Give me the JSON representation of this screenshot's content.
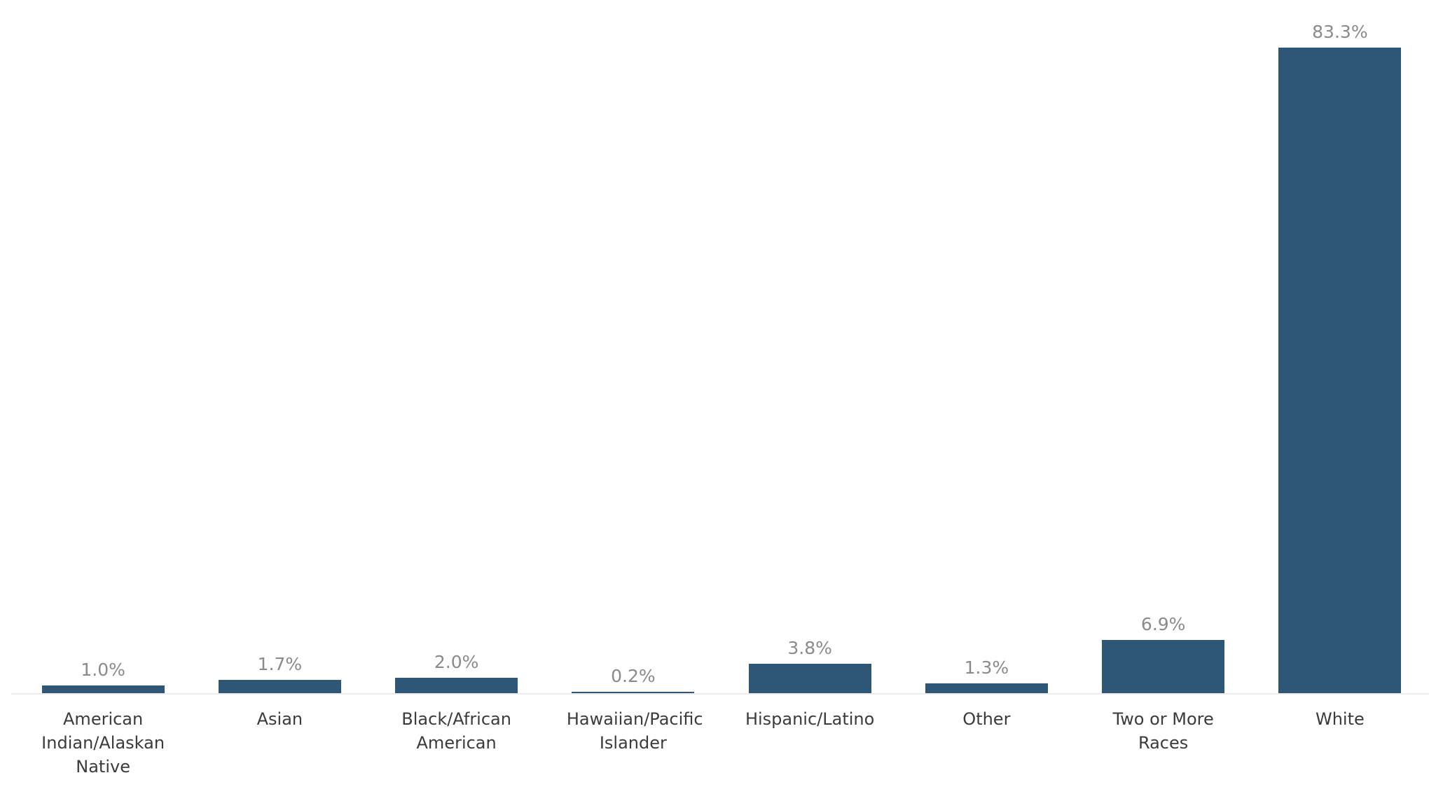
{
  "chart_data": {
    "type": "bar",
    "title": "",
    "xlabel": "",
    "ylabel": "",
    "categories": [
      "American Indian/Alaskan Native",
      "Asian",
      "Black/African American",
      "Hawaiian/Pacific Islander",
      "Hispanic/Latino",
      "Other",
      "Two or More Races",
      "White"
    ],
    "values": [
      1.0,
      1.7,
      2.0,
      0.2,
      3.8,
      1.3,
      6.9,
      83.3
    ],
    "value_labels": [
      "1.0%",
      "1.7%",
      "2.0%",
      "0.2%",
      "3.8%",
      "1.3%",
      "6.9%",
      "83.3%"
    ],
    "ylim": [
      0,
      90
    ],
    "grid": false,
    "legend": false,
    "y_axis_visible": false,
    "x_axis_baseline_visible": true
  },
  "colors": {
    "bar": "#2e5677",
    "value_label": "#8a8a8a",
    "category_label": "#3b3b3b",
    "axis_line": "#ececec",
    "background": "#ffffff"
  }
}
